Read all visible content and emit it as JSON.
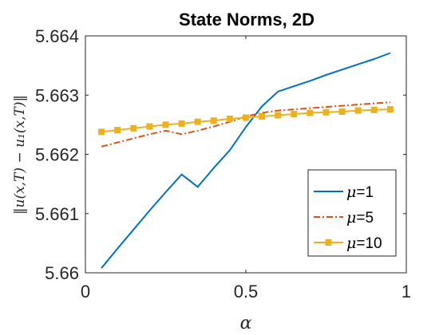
{
  "chart_data": {
    "type": "line",
    "title": "State Norms, 2D",
    "xlabel": "α",
    "ylabel": "‖u(x,T) − u₁(x,T)‖",
    "xlim": [
      0,
      1
    ],
    "ylim": [
      5.66,
      5.664
    ],
    "xticks": [
      0,
      0.5,
      1
    ],
    "xtick_labels": [
      "0",
      "0.5",
      "1"
    ],
    "yticks": [
      5.66,
      5.661,
      5.662,
      5.663,
      5.664
    ],
    "ytick_labels": [
      "5.66",
      "5.661",
      "5.662",
      "5.663",
      "5.664"
    ],
    "legend_position": "bottom-right",
    "grid": false,
    "series": [
      {
        "name": "μ=1",
        "legend_mu": "μ",
        "legend_value": "=1",
        "color": "#0072BD",
        "style": "solid",
        "marker": "none",
        "x": [
          0.05,
          0.1,
          0.15,
          0.2,
          0.25,
          0.3,
          0.35,
          0.4,
          0.45,
          0.5,
          0.55,
          0.6,
          0.65,
          0.7,
          0.75,
          0.8,
          0.85,
          0.9,
          0.95
        ],
        "values": [
          5.66008,
          5.66041,
          5.66073,
          5.66105,
          5.66136,
          5.66166,
          5.66145,
          5.66177,
          5.66207,
          5.66246,
          5.66281,
          5.66306,
          5.66315,
          5.66324,
          5.66334,
          5.66343,
          5.66352,
          5.66361,
          5.66371
        ]
      },
      {
        "name": "μ=5",
        "legend_mu": "μ",
        "legend_value": "=5",
        "color": "#D95319",
        "style": "dashdot",
        "marker": "none",
        "x": [
          0.05,
          0.1,
          0.15,
          0.2,
          0.25,
          0.3,
          0.35,
          0.4,
          0.45,
          0.5,
          0.55,
          0.6,
          0.65,
          0.7,
          0.75,
          0.8,
          0.85,
          0.9,
          0.95
        ],
        "values": [
          5.66213,
          5.6622,
          5.66227,
          5.66234,
          5.6624,
          5.66234,
          5.6624,
          5.66247,
          5.66255,
          5.66264,
          5.6627,
          5.66274,
          5.66276,
          5.66278,
          5.6628,
          5.66282,
          5.66284,
          5.66286,
          5.66288
        ]
      },
      {
        "name": "μ=10",
        "legend_mu": "μ",
        "legend_value": "=10",
        "color": "#EDB120",
        "style": "solid",
        "marker": "square",
        "x": [
          0.05,
          0.1,
          0.15,
          0.2,
          0.25,
          0.3,
          0.35,
          0.4,
          0.45,
          0.5,
          0.55,
          0.6,
          0.65,
          0.7,
          0.75,
          0.8,
          0.85,
          0.9,
          0.95
        ],
        "values": [
          5.66238,
          5.66241,
          5.66244,
          5.66247,
          5.6625,
          5.66252,
          5.66255,
          5.66257,
          5.6626,
          5.66262,
          5.66264,
          5.66266,
          5.66268,
          5.6627,
          5.66271,
          5.66272,
          5.66274,
          5.66275,
          5.66276
        ]
      }
    ]
  }
}
